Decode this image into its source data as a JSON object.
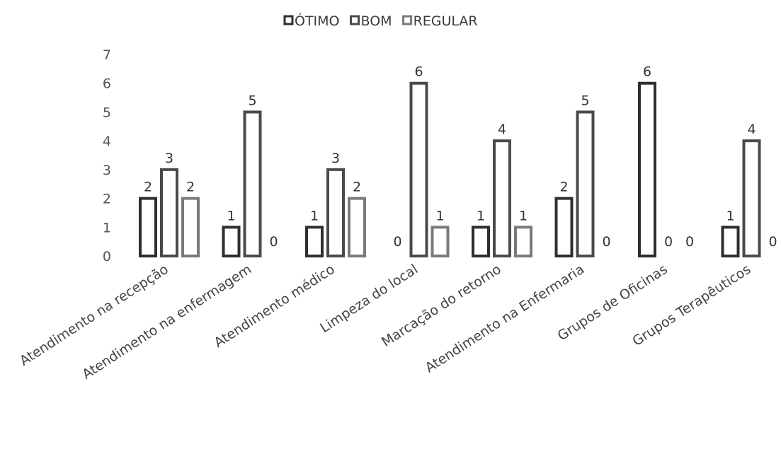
{
  "chart_data": {
    "type": "bar",
    "categories": [
      "Atendimento na recepção",
      "Atendimento na enfermagem",
      "Atendimento médico",
      "Limpeza do local",
      "Marcação do retorno",
      "Atendimento na Enfermaria",
      "Grupos de Oficinas",
      "Grupos Terapêuticos"
    ],
    "series": [
      {
        "name": "ÓTIMO",
        "values": [
          2,
          1,
          1,
          0,
          1,
          2,
          6,
          1
        ],
        "color": "#2e2e2e"
      },
      {
        "name": "BOM",
        "values": [
          3,
          5,
          3,
          6,
          4,
          5,
          0,
          4
        ],
        "color": "#4a4a4a"
      },
      {
        "name": "REGULAR",
        "values": [
          2,
          0,
          2,
          1,
          1,
          0,
          0,
          0
        ],
        "color": "#7a7a7a"
      }
    ],
    "yticks": [
      "0",
      "1",
      "2",
      "3",
      "4",
      "5",
      "6",
      "7"
    ],
    "ylim": [
      0,
      7
    ],
    "legend_position": "top-center",
    "grid": false,
    "title": "",
    "xlabel": "",
    "ylabel": ""
  }
}
